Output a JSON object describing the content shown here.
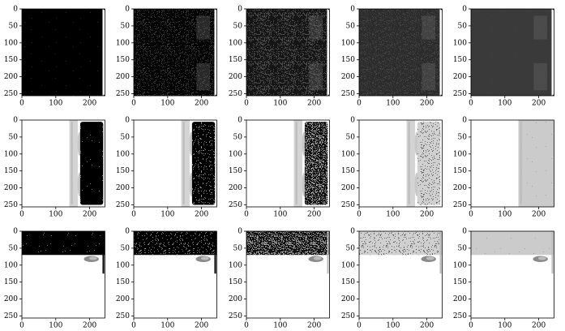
{
  "chart_data": [
    {
      "type": "image",
      "xlim": [
        0,
        245
      ],
      "ylim": [
        256,
        0
      ],
      "xticks": [
        0,
        100,
        200
      ],
      "yticks": [
        0,
        50,
        100,
        150,
        200,
        250
      ]
    },
    {
      "type": "image",
      "xlim": [
        0,
        245
      ],
      "ylim": [
        256,
        0
      ],
      "xticks": [
        0,
        100,
        200
      ],
      "yticks": [
        0,
        50,
        100,
        150,
        200,
        250
      ]
    },
    {
      "type": "image",
      "xlim": [
        0,
        245
      ],
      "ylim": [
        256,
        0
      ],
      "xticks": [
        0,
        100,
        200
      ],
      "yticks": [
        0,
        50,
        100,
        150,
        200,
        250
      ]
    },
    {
      "type": "image",
      "xlim": [
        0,
        245
      ],
      "ylim": [
        256,
        0
      ],
      "xticks": [
        0,
        100,
        200
      ],
      "yticks": [
        0,
        50,
        100,
        150,
        200,
        250
      ]
    },
    {
      "type": "image",
      "xlim": [
        0,
        245
      ],
      "ylim": [
        256,
        0
      ],
      "xticks": [
        0,
        100,
        200
      ],
      "yticks": [
        0,
        50,
        100,
        150,
        200,
        250
      ]
    },
    {
      "type": "image",
      "xlim": [
        0,
        245
      ],
      "ylim": [
        256,
        0
      ],
      "xticks": [
        0,
        100,
        200
      ],
      "yticks": [
        0,
        50,
        100,
        150,
        200,
        250
      ]
    },
    {
      "type": "image",
      "xlim": [
        0,
        245
      ],
      "ylim": [
        256,
        0
      ],
      "xticks": [
        0,
        100,
        200
      ],
      "yticks": [
        0,
        50,
        100,
        150,
        200,
        250
      ]
    },
    {
      "type": "image",
      "xlim": [
        0,
        245
      ],
      "ylim": [
        256,
        0
      ],
      "xticks": [
        0,
        100,
        200
      ],
      "yticks": [
        0,
        50,
        100,
        150,
        200,
        250
      ]
    },
    {
      "type": "image",
      "xlim": [
        0,
        245
      ],
      "ylim": [
        256,
        0
      ],
      "xticks": [
        0,
        100,
        200
      ],
      "yticks": [
        0,
        50,
        100,
        150,
        200,
        250
      ]
    },
    {
      "type": "image",
      "xlim": [
        0,
        245
      ],
      "ylim": [
        256,
        0
      ],
      "xticks": [
        0,
        100,
        200
      ],
      "yticks": [
        0,
        50,
        100,
        150,
        200,
        250
      ]
    },
    {
      "type": "image",
      "xlim": [
        0,
        245
      ],
      "ylim": [
        256,
        0
      ],
      "xticks": [
        0,
        100,
        200
      ],
      "yticks": [
        0,
        50,
        100,
        150,
        200,
        250
      ]
    },
    {
      "type": "image",
      "xlim": [
        0,
        245
      ],
      "ylim": [
        256,
        0
      ],
      "xticks": [
        0,
        100,
        200
      ],
      "yticks": [
        0,
        50,
        100,
        150,
        200,
        250
      ]
    },
    {
      "type": "image",
      "xlim": [
        0,
        245
      ],
      "ylim": [
        256,
        0
      ],
      "xticks": [
        0,
        100,
        200
      ],
      "yticks": [
        0,
        50,
        100,
        150,
        200,
        250
      ]
    },
    {
      "type": "image",
      "xlim": [
        0,
        245
      ],
      "ylim": [
        256,
        0
      ],
      "xticks": [
        0,
        100,
        200
      ],
      "yticks": [
        0,
        50,
        100,
        150,
        200,
        250
      ]
    },
    {
      "type": "image",
      "xlim": [
        0,
        245
      ],
      "ylim": [
        256,
        0
      ],
      "xticks": [
        0,
        100,
        200
      ],
      "yticks": [
        0,
        50,
        100,
        150,
        200,
        250
      ]
    }
  ]
}
